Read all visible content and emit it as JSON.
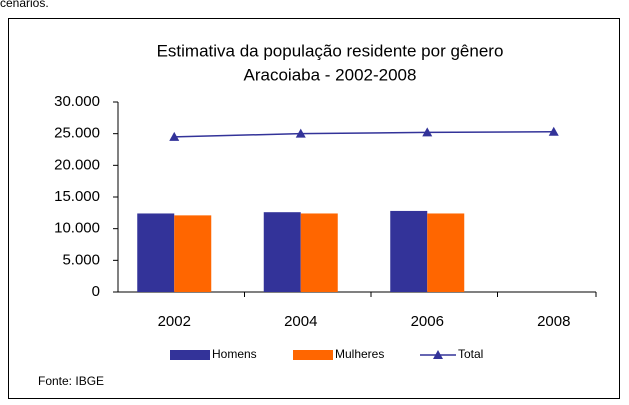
{
  "caption_above": "cenários.",
  "chart_data": {
    "type": "bar",
    "title": "Estimativa da população residente por gênero",
    "subtitle": "Aracoiaba - 2002-2008",
    "categories": [
      "2002",
      "2004",
      "2006",
      "2008"
    ],
    "series": [
      {
        "name": "Homens",
        "color": "#333399",
        "values": [
          12400,
          12600,
          12800,
          null
        ]
      },
      {
        "name": "Mulheres",
        "color": "#ff6600",
        "values": [
          12100,
          12400,
          12400,
          null
        ]
      },
      {
        "name": "Total",
        "type": "line",
        "color": "#333399",
        "values": [
          24500,
          25000,
          25200,
          25300
        ]
      }
    ],
    "ylim": [
      0,
      30000
    ],
    "yticks": [
      0,
      {
        "value": 5000,
        "label": "5.000"
      },
      {
        "value": 10000,
        "label": "10.000"
      },
      {
        "value": 15000,
        "label": "15.000"
      },
      {
        "value": 20000,
        "label": "20.000"
      },
      {
        "value": 25000,
        "label": "25.000"
      },
      {
        "value": 30000,
        "label": "30.000"
      }
    ],
    "legend": "bottom",
    "source": "Fonte: IBGE"
  }
}
